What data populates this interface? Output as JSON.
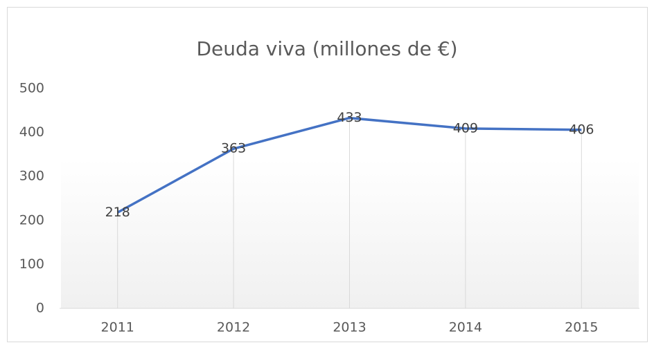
{
  "chart_data": {
    "type": "line",
    "title": "Deuda viva (millones de €)",
    "categories": [
      "2011",
      "2012",
      "2013",
      "2014",
      "2015"
    ],
    "series": [
      {
        "name": "Deuda viva",
        "color": "#4472c4",
        "values": [
          218,
          363,
          433,
          409,
          406
        ]
      }
    ],
    "ylim": [
      0,
      500
    ],
    "yticks": [
      0,
      100,
      200,
      300,
      400,
      500
    ],
    "drop_lines": true
  }
}
